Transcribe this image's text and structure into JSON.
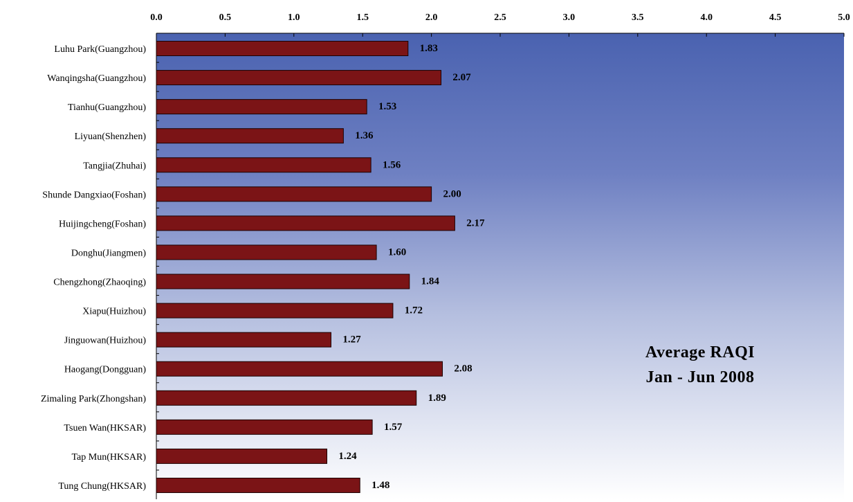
{
  "chart_data": {
    "type": "bar",
    "orientation": "horizontal",
    "title": "",
    "xlabel": "",
    "ylabel": "",
    "xlim": [
      0,
      5
    ],
    "x_ticks": [
      "0.0",
      "0.5",
      "1.0",
      "1.5",
      "2.0",
      "2.5",
      "3.0",
      "3.5",
      "4.0",
      "4.5",
      "5.0"
    ],
    "x_axis_position": "top",
    "grid": false,
    "legend": "none",
    "categories": [
      "Luhu Park(Guangzhou)",
      "Wanqingsha(Guangzhou)",
      "Tianhu(Guangzhou)",
      "Liyuan(Shenzhen)",
      "Tangjia(Zhuhai)",
      "Shunde Dangxiao(Foshan)",
      "Huijingcheng(Foshan)",
      "Donghu(Jiangmen)",
      "Chengzhong(Zhaoqing)",
      "Xiapu(Huizhou)",
      "Jinguowan(Huizhou)",
      "Haogang(Dongguan)",
      "Zimaling Park(Zhongshan)",
      "Tsuen Wan(HKSAR)",
      "Tap Mun(HKSAR)",
      "Tung Chung(HKSAR)"
    ],
    "values": [
      1.83,
      2.07,
      1.53,
      1.36,
      1.56,
      2.0,
      2.17,
      1.6,
      1.84,
      1.72,
      1.27,
      2.08,
      1.89,
      1.57,
      1.24,
      1.48
    ],
    "value_labels": [
      "1.83",
      "2.07",
      "1.53",
      "1.36",
      "1.56",
      "2.00",
      "2.17",
      "1.60",
      "1.84",
      "1.72",
      "1.27",
      "2.08",
      "1.89",
      "1.57",
      "1.24",
      "1.48"
    ],
    "annotation": [
      "Average RAQI",
      "Jan - Jun 2008"
    ],
    "colors": {
      "bar_fill": "#7B1416",
      "bar_stroke": "#1a0000",
      "plot_gradient_top": "#4A62B0",
      "plot_gradient_bottom": "#FFFFFF"
    }
  }
}
